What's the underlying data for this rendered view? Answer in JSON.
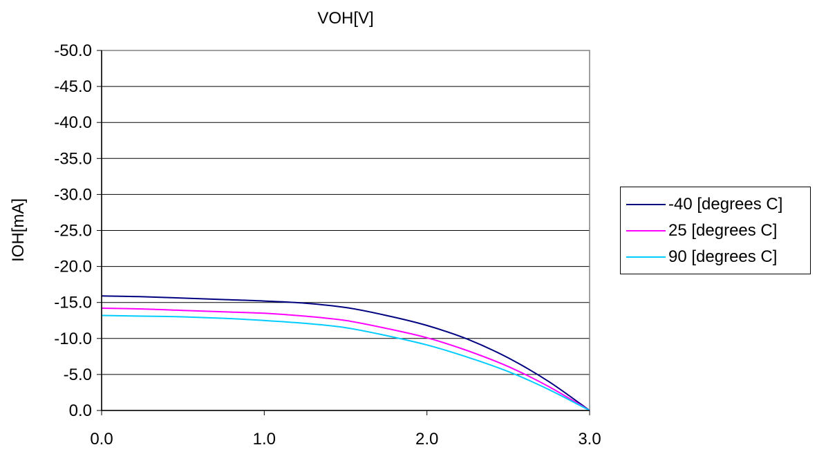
{
  "chart_data": {
    "type": "line",
    "title": "VOH[V]",
    "xlabel": "",
    "ylabel": "IOH[mA]",
    "xlim": [
      0,
      3
    ],
    "ylim": [
      0,
      -50
    ],
    "xticks": [
      "0.0",
      "1.0",
      "2.0",
      "3.0"
    ],
    "yticks": [
      "0.0",
      "-5.0",
      "-10.0",
      "-15.0",
      "-20.0",
      "-25.0",
      "-30.0",
      "-35.0",
      "-40.0",
      "-45.0",
      "-50.0"
    ],
    "y_axis_inverted": true,
    "grid": "horizontal",
    "legend_position": "right",
    "series": [
      {
        "name": "-40 [degrees C]",
        "color": "#000080",
        "x": [
          0.0,
          0.25,
          0.5,
          0.75,
          1.0,
          1.25,
          1.5,
          1.75,
          2.0,
          2.25,
          2.5,
          2.75,
          3.0
        ],
        "y": [
          -15.9,
          -15.8,
          -15.6,
          -15.4,
          -15.2,
          -14.9,
          -14.3,
          -13.2,
          -11.8,
          -9.9,
          -7.3,
          -4.0,
          0.0
        ]
      },
      {
        "name": "25 [degrees C]",
        "color": "#FF00FF",
        "x": [
          0.0,
          0.25,
          0.5,
          0.75,
          1.0,
          1.25,
          1.5,
          1.75,
          2.0,
          2.25,
          2.5,
          2.75,
          3.0
        ],
        "y": [
          -14.2,
          -14.1,
          -13.9,
          -13.7,
          -13.5,
          -13.1,
          -12.5,
          -11.4,
          -10.1,
          -8.3,
          -6.1,
          -3.3,
          0.0
        ]
      },
      {
        "name": "90 [degrees C]",
        "color": "#00CCFF",
        "x": [
          0.0,
          0.25,
          0.5,
          0.75,
          1.0,
          1.25,
          1.5,
          1.75,
          2.0,
          2.25,
          2.5,
          2.75,
          3.0
        ],
        "y": [
          -13.2,
          -13.1,
          -13.0,
          -12.8,
          -12.5,
          -12.1,
          -11.5,
          -10.4,
          -9.1,
          -7.4,
          -5.4,
          -2.9,
          0.0
        ]
      }
    ]
  }
}
